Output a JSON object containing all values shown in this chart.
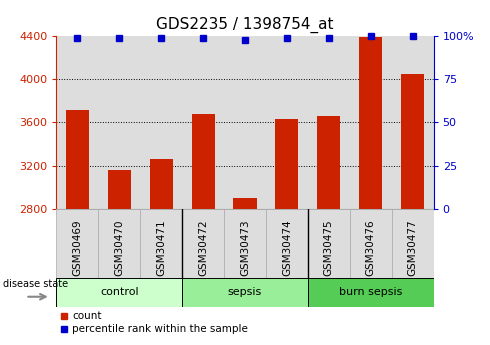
{
  "title": "GDS2235 / 1398754_at",
  "samples": [
    "GSM30469",
    "GSM30470",
    "GSM30471",
    "GSM30472",
    "GSM30473",
    "GSM30474",
    "GSM30475",
    "GSM30476",
    "GSM30477"
  ],
  "counts": [
    3720,
    3160,
    3260,
    3680,
    2900,
    3630,
    3660,
    4390,
    4050
  ],
  "percentile_values": [
    99,
    99,
    99,
    99,
    98,
    99,
    99,
    100,
    100
  ],
  "groups": [
    {
      "label": "control",
      "indices": [
        0,
        1,
        2
      ],
      "color": "#ccffcc"
    },
    {
      "label": "sepsis",
      "indices": [
        3,
        4,
        5
      ],
      "color": "#99ee99"
    },
    {
      "label": "burn sepsis",
      "indices": [
        6,
        7,
        8
      ],
      "color": "#55cc55"
    }
  ],
  "ylim_left": [
    2800,
    4400
  ],
  "ylim_right": [
    0,
    100
  ],
  "yticks_left": [
    2800,
    3200,
    3600,
    4000,
    4400
  ],
  "yticks_right": [
    0,
    25,
    50,
    75,
    100
  ],
  "ytick_right_labels": [
    "0",
    "25",
    "50",
    "75",
    "100%"
  ],
  "bar_color": "#cc2200",
  "dot_color": "#0000cc",
  "bar_width": 0.55,
  "cell_bg_color": "#dddddd",
  "white": "#ffffff",
  "legend_count_label": "count",
  "legend_pct_label": "percentile rank within the sample",
  "disease_state_label": "disease state",
  "grid_ticks": [
    3200,
    3600,
    4000
  ],
  "title_fontsize": 11,
  "tick_fontsize": 8,
  "label_fontsize": 7.5
}
